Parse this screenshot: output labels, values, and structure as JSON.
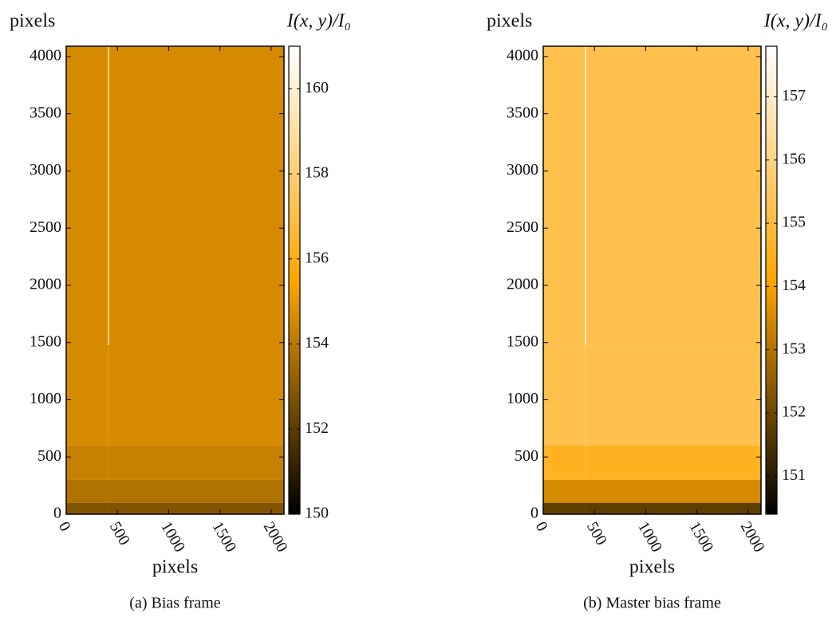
{
  "chart_data": [
    {
      "type": "heatmap",
      "caption": "(a)  Bias frame",
      "xlabel": "pixels",
      "ylabel": "pixels",
      "colorbar_label": "I(x, y)/I₀",
      "xlim": [
        0,
        2125
      ],
      "ylim": [
        0,
        4090
      ],
      "xticks": [
        0,
        500,
        1000,
        1500,
        2000
      ],
      "yticks": [
        0,
        500,
        1000,
        1500,
        2000,
        2500,
        3000,
        3500,
        4000
      ],
      "x_edges": [
        0,
        405,
        420,
        2125
      ],
      "y_edges": [
        0,
        100,
        300,
        600,
        1480,
        4090
      ],
      "z": [
        [
          152.8,
          152.8,
          152.8
        ],
        [
          153.8,
          153.8,
          153.8
        ],
        [
          154.3,
          154.4,
          154.3
        ],
        [
          154.6,
          154.8,
          154.6
        ],
        [
          154.6,
          158.5,
          154.6
        ]
      ],
      "clim": [
        150,
        161
      ],
      "cticks": [
        150,
        152,
        154,
        156,
        158,
        160
      ],
      "colormap": [
        "#000000",
        "#ffa500",
        "#ffffff"
      ]
    },
    {
      "type": "heatmap",
      "caption": "(b)  Master bias frame",
      "xlabel": "pixels",
      "ylabel": "pixels",
      "colorbar_label": "I(x, y)/I₀",
      "xlim": [
        0,
        2125
      ],
      "ylim": [
        0,
        4090
      ],
      "xticks": [
        0,
        500,
        1000,
        1500,
        2000
      ],
      "yticks": [
        0,
        500,
        1000,
        1500,
        2000,
        2500,
        3000,
        3500,
        4000
      ],
      "x_edges": [
        0,
        405,
        420,
        2125
      ],
      "y_edges": [
        0,
        100,
        300,
        600,
        1480,
        4090
      ],
      "z": [
        [
          151.8,
          151.8,
          151.8
        ],
        [
          153.5,
          153.5,
          153.5
        ],
        [
          154.6,
          154.7,
          154.6
        ],
        [
          155.2,
          155.4,
          155.2
        ],
        [
          155.2,
          156.9,
          155.2
        ]
      ],
      "clim": [
        150.4,
        157.8
      ],
      "cticks": [
        151,
        152,
        153,
        154,
        155,
        156,
        157
      ],
      "colormap": [
        "#000000",
        "#ffa500",
        "#ffffff"
      ]
    }
  ]
}
